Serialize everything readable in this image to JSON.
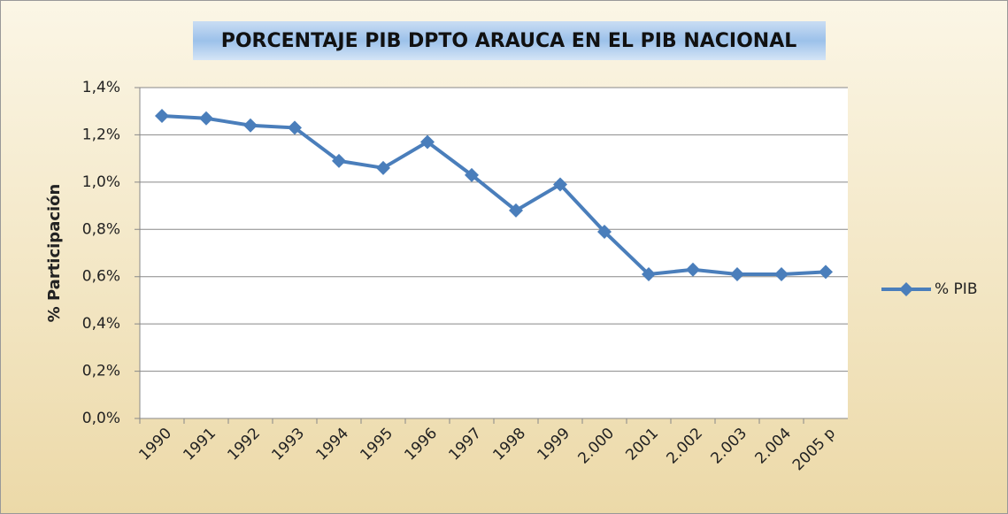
{
  "chart_data": {
    "type": "line",
    "title": "PORCENTAJE PIB DPTO ARAUCA EN EL PIB NACIONAL",
    "y_label": "% Participación",
    "categories": [
      "1990",
      "1991",
      "1992",
      "1993",
      "1994",
      "1995",
      "1996",
      "1997",
      "1998",
      "1999",
      "2.000",
      "2001",
      "2.002",
      "2.003",
      "2.004",
      "2005 p"
    ],
    "series": [
      {
        "name": "% PIB",
        "color": "#4a7ebb",
        "values": [
          1.28,
          1.27,
          1.24,
          1.23,
          1.09,
          1.06,
          1.17,
          1.03,
          0.88,
          0.99,
          0.79,
          0.61,
          0.63,
          0.61,
          0.61,
          0.62
        ]
      }
    ],
    "ylim": [
      0,
      1.4
    ],
    "yticks": [
      {
        "value": 0,
        "label": "0,0%"
      },
      {
        "value": 0.2,
        "label": "0,2%"
      },
      {
        "value": 0.4,
        "label": "0,4%"
      },
      {
        "value": 0.6,
        "label": "0,6%"
      },
      {
        "value": 0.8,
        "label": "0,8%"
      },
      {
        "value": 1.0,
        "label": "1,0%"
      },
      {
        "value": 1.2,
        "label": "1,2%"
      },
      {
        "value": 1.4,
        "label": "1,4%"
      }
    ],
    "grid": true,
    "legend": "right"
  }
}
